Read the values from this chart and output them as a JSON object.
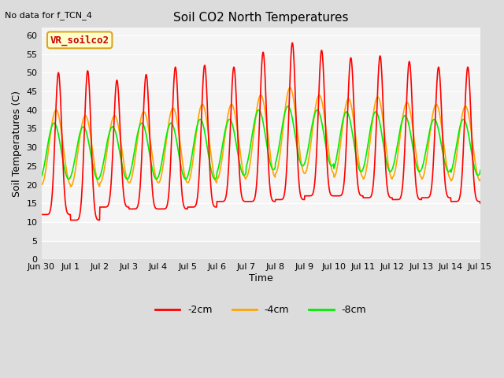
{
  "title": "Soil CO2 North Temperatures",
  "no_data_text": "No data for f_TCN_4",
  "legend_box_text": "VR_soilco2",
  "ylabel": "Soil Temperatures (C)",
  "xlabel": "Time",
  "ylim": [
    0,
    62
  ],
  "yticks": [
    0,
    5,
    10,
    15,
    20,
    25,
    30,
    35,
    40,
    45,
    50,
    55,
    60
  ],
  "colors": {
    "2cm": "#FF0000",
    "4cm": "#FFA500",
    "8cm": "#00EE00"
  },
  "line_labels": [
    "-2cm",
    "-4cm",
    "-8cm"
  ],
  "bg_color": "#DCDCDC",
  "plot_bg_color": "#F5F5F5",
  "xtick_labels": [
    "Jun 30",
    "Jul 1",
    "Jul 2",
    "Jul 3",
    "Jul 4",
    "Jul 5",
    "Jul 6",
    "Jul 7",
    "Jul 8",
    "Jul 9",
    "Jul 10",
    "Jul 11",
    "Jul 12",
    "Jul 13",
    "Jul 14",
    "Jul 15"
  ],
  "n_days": 16,
  "samples_per_day": 96,
  "mean_2cm": [
    31,
    30.5,
    31,
    31.5,
    32.5,
    33,
    33.5,
    35.5,
    37,
    36.5,
    35.5,
    35.5,
    34.5,
    34,
    33.5,
    34
  ],
  "amp_2cm": [
    19,
    20,
    17,
    18,
    19,
    19,
    18,
    20,
    21,
    19.5,
    18.5,
    19,
    18.5,
    17.5,
    18,
    19
  ],
  "mean_4cm": [
    30,
    29,
    29.5,
    30,
    30.5,
    31,
    31.5,
    33,
    34.5,
    33.5,
    32.5,
    32.5,
    32,
    31.5,
    31,
    31.5
  ],
  "amp_4cm": [
    10,
    9.5,
    9,
    9.5,
    10,
    10.5,
    10,
    11,
    11.5,
    10.5,
    10.5,
    11,
    10,
    10,
    10,
    10
  ],
  "mean_8cm": [
    29,
    28.5,
    28.5,
    29,
    29,
    29.5,
    30,
    32,
    33,
    32.5,
    31.5,
    31.5,
    31,
    30.5,
    30,
    30.5
  ],
  "amp_8cm": [
    7.5,
    7,
    7,
    7.5,
    7.5,
    8,
    7.5,
    8,
    8,
    7.5,
    8,
    8,
    7.5,
    7,
    7.5,
    7.5
  ],
  "phase_lag_4cm": 0.08,
  "phase_lag_8cm": 0.15,
  "peak_sharpness": 4.0
}
